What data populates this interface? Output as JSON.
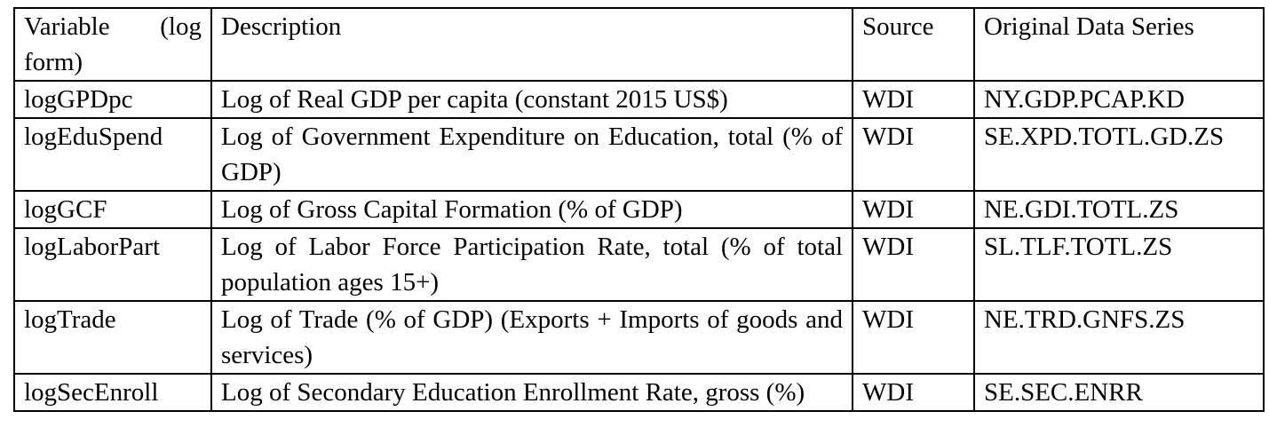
{
  "table": {
    "headers": {
      "variable": "Variable (log form)",
      "description": "Description",
      "source": "Source",
      "series": "Original Data Series"
    },
    "rows": [
      {
        "variable": "logGPDpc",
        "description": "Log of Real GDP per capita (constant 2015 US$)",
        "source": "WDI",
        "series": "NY.GDP.PCAP.KD"
      },
      {
        "variable": "logEduSpend",
        "description": "Log of Government Expenditure on Education, total (% of GDP)",
        "source": "WDI",
        "series": "SE.XPD.TOTL.GD.ZS"
      },
      {
        "variable": "logGCF",
        "description": "Log of Gross Capital Formation (% of GDP)",
        "source": "WDI",
        "series": "NE.GDI.TOTL.ZS"
      },
      {
        "variable": "logLaborPart",
        "description": "Log of Labor Force Participation Rate, total (% of total population ages 15+)",
        "source": "WDI",
        "series": "SL.TLF.TOTL.ZS"
      },
      {
        "variable": "logTrade",
        "description": "Log of Trade (% of GDP) (Exports + Imports of goods and services)",
        "source": "WDI",
        "series": "NE.TRD.GNFS.ZS"
      },
      {
        "variable": "logSecEnroll",
        "description": "Log of Secondary Education Enrollment Rate, gross (%)",
        "source": "WDI",
        "series": "SE.SEC.ENRR"
      }
    ]
  }
}
